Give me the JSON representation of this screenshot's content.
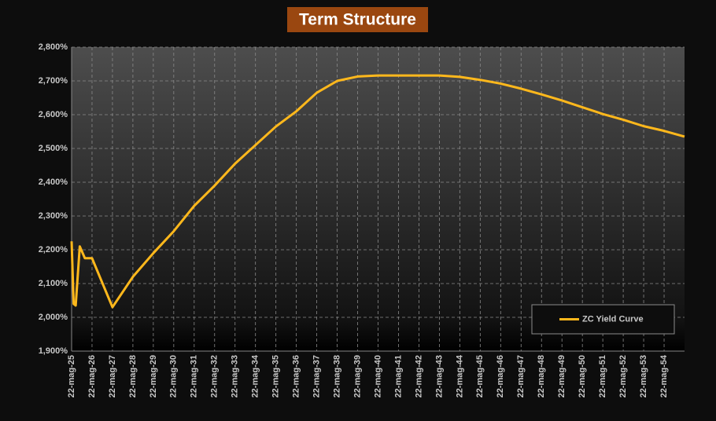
{
  "chart_data": {
    "type": "line",
    "title": "Term Structure",
    "x": [
      2025,
      2025.1,
      2025.2,
      2025.4,
      2025.65,
      2026,
      2027,
      2028,
      2029,
      2030,
      2031,
      2032,
      2033,
      2034,
      2035,
      2036,
      2037,
      2038,
      2039,
      2040,
      2041,
      2042,
      2043,
      2044,
      2045,
      2046,
      2047,
      2048,
      2049,
      2050,
      2051,
      2052,
      2053,
      2054,
      2055
    ],
    "series": [
      {
        "name": "ZC Yield Curve",
        "color": "#ffb81c",
        "values": [
          2.225,
          2.04,
          2.035,
          2.21,
          2.175,
          2.175,
          2.03,
          2.12,
          2.19,
          2.255,
          2.33,
          2.39,
          2.455,
          2.51,
          2.565,
          2.61,
          2.665,
          2.7,
          2.713,
          2.716,
          2.716,
          2.716,
          2.716,
          2.712,
          2.703,
          2.692,
          2.677,
          2.66,
          2.642,
          2.622,
          2.602,
          2.585,
          2.566,
          2.552,
          2.535
        ]
      }
    ],
    "xlim": [
      2025,
      2055
    ],
    "xticks": [
      {
        "value": 2025,
        "label": "22-mag-25"
      },
      {
        "value": 2026,
        "label": "22-mag-26"
      },
      {
        "value": 2027,
        "label": "22-mag-27"
      },
      {
        "value": 2028,
        "label": "22-mag-28"
      },
      {
        "value": 2029,
        "label": "22-mag-29"
      },
      {
        "value": 2030,
        "label": "22-mag-30"
      },
      {
        "value": 2031,
        "label": "22-mag-31"
      },
      {
        "value": 2032,
        "label": "22-mag-32"
      },
      {
        "value": 2033,
        "label": "22-mag-33"
      },
      {
        "value": 2034,
        "label": "22-mag-34"
      },
      {
        "value": 2035,
        "label": "22-mag-35"
      },
      {
        "value": 2036,
        "label": "22-mag-36"
      },
      {
        "value": 2037,
        "label": "22-mag-37"
      },
      {
        "value": 2038,
        "label": "22-mag-38"
      },
      {
        "value": 2039,
        "label": "22-mag-39"
      },
      {
        "value": 2040,
        "label": "22-mag-40"
      },
      {
        "value": 2041,
        "label": "22-mag-41"
      },
      {
        "value": 2042,
        "label": "22-mag-42"
      },
      {
        "value": 2043,
        "label": "22-mag-43"
      },
      {
        "value": 2044,
        "label": "22-mag-44"
      },
      {
        "value": 2045,
        "label": "22-mag-45"
      },
      {
        "value": 2046,
        "label": "22-mag-46"
      },
      {
        "value": 2047,
        "label": "22-mag-47"
      },
      {
        "value": 2048,
        "label": "22-mag-48"
      },
      {
        "value": 2049,
        "label": "22-mag-49"
      },
      {
        "value": 2050,
        "label": "22-mag-50"
      },
      {
        "value": 2051,
        "label": "22-mag-51"
      },
      {
        "value": 2052,
        "label": "22-mag-52"
      },
      {
        "value": 2053,
        "label": "22-mag-53"
      },
      {
        "value": 2054,
        "label": "22-mag-54"
      }
    ],
    "ylim": [
      1.9,
      2.8
    ],
    "yticks": [
      {
        "value": 1.9,
        "label": "1,900%"
      },
      {
        "value": 2.0,
        "label": "2,000%"
      },
      {
        "value": 2.1,
        "label": "2,100%"
      },
      {
        "value": 2.2,
        "label": "2,200%"
      },
      {
        "value": 2.3,
        "label": "2,300%"
      },
      {
        "value": 2.4,
        "label": "2,400%"
      },
      {
        "value": 2.5,
        "label": "2,500%"
      },
      {
        "value": 2.6,
        "label": "2,600%"
      },
      {
        "value": 2.7,
        "label": "2,700%"
      },
      {
        "value": 2.8,
        "label": "2,800%"
      }
    ],
    "grid": true,
    "legend": "lower right"
  }
}
